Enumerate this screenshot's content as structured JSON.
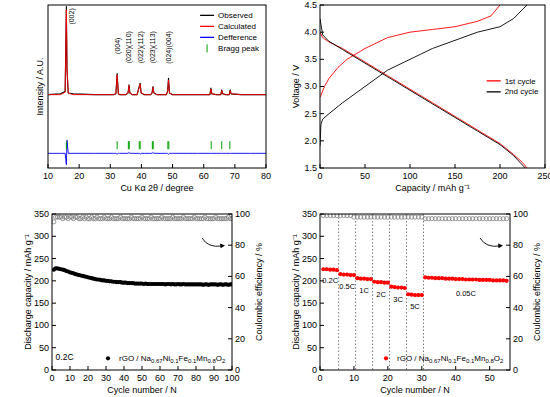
{
  "chart_data": [
    {
      "type": "line",
      "x_label": "Cu Kα 2θ / degree",
      "y_label": "Intensity / A.U.",
      "xlim": [
        10,
        80
      ],
      "xticks": [
        10,
        20,
        30,
        40,
        50,
        60,
        70,
        80
      ],
      "ylim": [
        0,
        100
      ],
      "tick_labels": "x",
      "legend": "upper right",
      "x": [
        10,
        14,
        15.5,
        15.9,
        16.1,
        16.5,
        18,
        25,
        31,
        31.8,
        32.2,
        32.6,
        33,
        35,
        35.7,
        36.0,
        36.3,
        37,
        38.6,
        39.3,
        39.6,
        39.9,
        41,
        43,
        43.4,
        43.7,
        44.0,
        45,
        48,
        48.4,
        48.7,
        49.0,
        50,
        55,
        58,
        62,
        62.3,
        62.6,
        64,
        65.5,
        65.8,
        66.1,
        67,
        68.2,
        68.5,
        68.8,
        72,
        75,
        80
      ],
      "series": [
        {
          "name": "Observed",
          "color": "#000000",
          "values": [
            45,
            45.5,
            47,
            99,
            60,
            46,
            45.5,
            45,
            45,
            45.5,
            58,
            45.5,
            45,
            45,
            46,
            51,
            46,
            45,
            45,
            50,
            52,
            46,
            45,
            45,
            46,
            50,
            46,
            45,
            45,
            47,
            55,
            46,
            45,
            45,
            45,
            45,
            49,
            45.5,
            45,
            45,
            48,
            45.5,
            45,
            45,
            48,
            45.5,
            45,
            45,
            45
          ]
        },
        {
          "name": "Calculated",
          "color": "#ff0000",
          "values": [
            45,
            45,
            46.5,
            97,
            62,
            46,
            45,
            45,
            45,
            45.5,
            57,
            45.5,
            45,
            45,
            46,
            50.5,
            46,
            45,
            45,
            49.5,
            51.5,
            46,
            45,
            45,
            46,
            49.5,
            46,
            45,
            45,
            47,
            54,
            46,
            45,
            45,
            45,
            45,
            48.5,
            45.5,
            45,
            45,
            47.5,
            45.5,
            45,
            45,
            47.5,
            45.5,
            45,
            45,
            45
          ]
        },
        {
          "name": "Defference",
          "color": "#0000ff",
          "values": [
            9,
            9,
            9,
            2,
            17,
            9,
            9,
            9,
            9,
            9,
            8.5,
            9,
            9,
            9,
            9,
            9.5,
            9,
            9,
            9,
            9,
            8.5,
            9,
            9,
            9,
            9,
            9.5,
            9,
            9,
            9,
            9,
            8.5,
            9,
            9,
            9,
            9,
            9,
            9,
            9,
            9,
            9,
            9,
            9,
            9,
            9,
            9,
            9,
            9,
            9,
            9
          ]
        },
        {
          "name": "Bragg peak",
          "color": "#00a000",
          "type": "scatter",
          "marker": "vline",
          "x": [
            15.9,
            32.2,
            35.8,
            36.1,
            39.3,
            39.6,
            43.5,
            43.8,
            48.5,
            48.8,
            62.4,
            65.8,
            68.4
          ],
          "values": [
            14,
            14,
            14,
            14,
            14,
            14,
            14,
            14,
            14,
            14,
            14,
            14,
            14
          ]
        }
      ],
      "annotations": [
        {
          "text": "(002)",
          "x": 17.6,
          "y": 98
        },
        {
          "text": "(004)",
          "x": 32.2,
          "y": 80
        },
        {
          "text": "(020)(110)",
          "x": 36.0,
          "y": 84
        },
        {
          "text": "(022)(112)",
          "x": 39.6,
          "y": 84
        },
        {
          "text": "(023)(113)",
          "x": 43.6,
          "y": 84
        },
        {
          "text": "(024)(004)",
          "x": 48.7,
          "y": 84
        }
      ]
    },
    {
      "type": "line",
      "x_label": "Capacity / mAh g⁻¹",
      "y_label": "Voltage / V",
      "xlim": [
        0,
        250
      ],
      "xticks": [
        0,
        50,
        100,
        150,
        200,
        250
      ],
      "ylim": [
        1.5,
        4.5
      ],
      "yticks": [
        1.5,
        {
          "value": 2,
          "label": "2.0"
        },
        2.5,
        {
          "value": 3,
          "label": "3.0"
        },
        3.5,
        {
          "value": 4,
          "label": "4.0"
        },
        4.5
      ],
      "legend": "center right",
      "series": [
        {
          "name": "1st cycle",
          "color": "#ff0000",
          "x": [
            0,
            5,
            10,
            20,
            30,
            50,
            75,
            100,
            125,
            150,
            175,
            190,
            200,
            200,
            0,
            3,
            10,
            25,
            50,
            75,
            100,
            125,
            150,
            175,
            200,
            215,
            225,
            230
          ],
          "values": [
            2.8,
            3.0,
            3.15,
            3.35,
            3.5,
            3.7,
            3.9,
            4.0,
            4.05,
            4.1,
            4.2,
            4.3,
            4.5,
            null,
            4.0,
            3.9,
            3.82,
            3.7,
            3.45,
            3.2,
            2.95,
            2.7,
            2.45,
            2.2,
            1.95,
            1.75,
            1.6,
            1.5
          ]
        },
        {
          "name": "2nd cycle",
          "color": "#000000",
          "x": [
            0,
            1,
            3,
            10,
            25,
            50,
            75,
            100,
            125,
            150,
            175,
            200,
            215,
            230,
            230,
            0,
            3,
            10,
            25,
            50,
            75,
            100,
            125,
            150,
            175,
            200,
            215,
            228
          ],
          "values": [
            1.9,
            2.3,
            2.4,
            2.5,
            2.7,
            3.0,
            3.3,
            3.5,
            3.7,
            3.85,
            4.0,
            4.1,
            4.25,
            4.5,
            null,
            4.25,
            3.95,
            3.83,
            3.68,
            3.43,
            3.18,
            2.93,
            2.68,
            2.43,
            2.18,
            1.93,
            1.73,
            1.5
          ]
        }
      ]
    },
    {
      "type": "scatter",
      "x_label": "Cycle number / N",
      "y_label": "Discharge capacity / mAh g⁻¹",
      "y2_label": "Coulombic efficiency / %",
      "xlim": [
        0,
        100
      ],
      "xticks": [
        0,
        10,
        20,
        30,
        40,
        50,
        60,
        70,
        80,
        90,
        100
      ],
      "ylim": [
        0,
        350
      ],
      "yticks": [
        0,
        50,
        100,
        150,
        200,
        250,
        300,
        350
      ],
      "y2lim": [
        0,
        100
      ],
      "y2ticks": [
        0,
        20,
        40,
        60,
        80,
        100
      ],
      "legend": "lower right",
      "annotations": [
        {
          "text": "0.2C",
          "x": 7,
          "y": 30
        }
      ],
      "x": [
        1,
        2,
        3,
        4,
        5,
        6,
        7,
        8,
        9,
        10,
        11,
        12,
        13,
        14,
        15,
        16,
        17,
        18,
        19,
        20,
        21,
        22,
        23,
        24,
        25,
        26,
        27,
        28,
        29,
        30,
        31,
        32,
        33,
        34,
        35,
        36,
        37,
        38,
        39,
        40,
        41,
        42,
        43,
        44,
        45,
        46,
        47,
        48,
        49,
        50,
        51,
        52,
        53,
        54,
        55,
        56,
        57,
        58,
        59,
        60,
        61,
        62,
        63,
        64,
        65,
        66,
        67,
        68,
        69,
        70,
        71,
        72,
        73,
        74,
        75,
        76,
        77,
        78,
        79,
        80,
        81,
        82,
        83,
        84,
        85,
        86,
        87,
        88,
        89,
        90,
        91,
        92,
        93,
        94,
        95,
        96,
        97,
        98,
        99,
        100
      ],
      "series": [
        {
          "name": "rGO / Na0.67Ni0.1Fe0.1Mn0.8O2",
          "color": "#000000",
          "marker": "circle",
          "values": [
            225,
            228,
            228,
            227,
            226,
            225,
            224,
            222,
            221,
            219,
            218,
            217,
            215,
            214,
            213,
            212,
            211,
            210,
            209,
            208,
            207,
            206,
            205,
            204,
            203,
            203,
            202,
            201,
            201,
            200,
            200,
            199,
            199,
            198,
            198,
            197,
            197,
            197,
            196,
            196,
            196,
            195,
            195,
            195,
            195,
            194,
            194,
            194,
            194,
            194,
            193,
            194,
            193,
            193,
            193,
            193,
            193,
            193,
            193,
            193,
            193,
            193,
            192,
            193,
            193,
            192,
            193,
            192,
            192,
            193,
            192,
            192,
            193,
            192,
            192,
            192,
            192,
            192,
            192,
            192,
            192,
            192,
            192,
            191,
            192,
            192,
            191,
            192,
            192,
            192,
            192,
            191,
            192,
            192,
            191,
            192,
            192,
            191,
            192,
            192
          ]
        },
        {
          "color": "#808080",
          "marker": "open_circle",
          "axis": "y2",
          "values": [
            95,
            98,
            98,
            98,
            98,
            97,
            98,
            98,
            97,
            98,
            98,
            97,
            98,
            98,
            97,
            97,
            98,
            97,
            98,
            97,
            97,
            98,
            97,
            97,
            98,
            97,
            97,
            97,
            98,
            97,
            97,
            97,
            98,
            97,
            97,
            97,
            97,
            98,
            97,
            97,
            97,
            97,
            97,
            98,
            97,
            97,
            97,
            97,
            97,
            98,
            97,
            97,
            97,
            97,
            98,
            97,
            97,
            97,
            97,
            97,
            98,
            97,
            97,
            97,
            97,
            97,
            98,
            97,
            97,
            97,
            97,
            97,
            98,
            97,
            97,
            97,
            97,
            97,
            98,
            97,
            97,
            97,
            97,
            97,
            98,
            97,
            97,
            97,
            97,
            97,
            98,
            97,
            97,
            97,
            97,
            97,
            97,
            98,
            97,
            97
          ]
        }
      ]
    },
    {
      "type": "scatter",
      "x_label": "Cycle number / N",
      "y_label": "Discharge capacity / mAh g⁻¹",
      "y2_label": "Coulombic efficiency / %",
      "xlim": [
        0,
        56
      ],
      "xticks": [
        0,
        10,
        20,
        30,
        40,
        50
      ],
      "ylim": [
        0,
        350
      ],
      "yticks": [
        0,
        50,
        100,
        150,
        200,
        250,
        300,
        350
      ],
      "y2lim": [
        0,
        100
      ],
      "y2ticks": [
        0,
        20,
        40,
        60,
        80,
        100
      ],
      "legend": "lower right",
      "dividers": [
        5.5,
        10.5,
        15.5,
        20.5,
        25.5,
        30.5
      ],
      "annotations": [
        {
          "text": "0.2C",
          "x": 3,
          "y": 200
        },
        {
          "text": "0.5C",
          "x": 8,
          "y": 188
        },
        {
          "text": "1C",
          "x": 13,
          "y": 178
        },
        {
          "text": "2C",
          "x": 18,
          "y": 170
        },
        {
          "text": "3C",
          "x": 23,
          "y": 158
        },
        {
          "text": "5C",
          "x": 28,
          "y": 142
        },
        {
          "text": "0.05C",
          "x": 43,
          "y": 172
        }
      ],
      "x": [
        1,
        2,
        3,
        4,
        5,
        6,
        7,
        8,
        9,
        10,
        11,
        12,
        13,
        14,
        15,
        16,
        17,
        18,
        19,
        20,
        21,
        22,
        23,
        24,
        25,
        26,
        27,
        28,
        29,
        30,
        31,
        32,
        33,
        34,
        35,
        36,
        37,
        38,
        39,
        40,
        41,
        42,
        43,
        44,
        45,
        46,
        47,
        48,
        49,
        50,
        51,
        52,
        53,
        54,
        55
      ],
      "series": [
        {
          "name": "rGO / Na0.67Ni0.1Fe0.1Mn0.8O2",
          "color": "#ff0000",
          "marker": "circle",
          "values": [
            226,
            226,
            225,
            225,
            224,
            215,
            214,
            214,
            213,
            213,
            206,
            205,
            205,
            204,
            204,
            198,
            197,
            197,
            196,
            196,
            187,
            186,
            185,
            185,
            184,
            170,
            169,
            168,
            168,
            168,
            208,
            207,
            207,
            206,
            206,
            206,
            205,
            205,
            205,
            204,
            204,
            204,
            203,
            203,
            203,
            203,
            202,
            202,
            202,
            202,
            201,
            201,
            201,
            201,
            200
          ]
        },
        {
          "color": "#808080",
          "marker": "open_circle",
          "axis": "y2",
          "values": [
            99,
            99,
            99,
            99,
            99,
            99,
            99,
            99,
            99,
            98,
            98,
            98,
            98,
            98,
            98,
            98,
            98,
            98,
            98,
            98,
            98,
            98,
            98,
            98,
            98,
            98,
            98,
            98,
            98,
            98,
            97,
            97,
            97,
            97,
            97,
            97,
            97,
            97,
            97,
            97,
            97,
            97,
            97,
            97,
            97,
            97,
            97,
            97,
            97,
            97,
            97,
            97,
            97,
            97,
            97
          ]
        }
      ]
    }
  ]
}
